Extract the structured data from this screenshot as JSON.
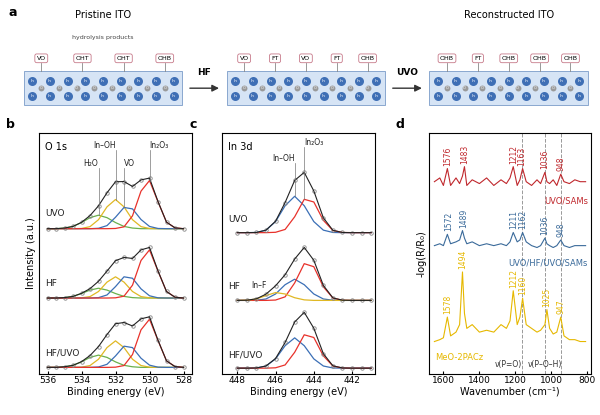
{
  "diagram": {
    "label": "a",
    "atoms": [
      "In",
      "O"
    ],
    "stages": [
      {
        "title": "Pristine ITO",
        "note": "hydrolysis products",
        "sites": [
          "VO",
          "OHT",
          "OHT",
          "OHB"
        ]
      },
      {
        "sites": [
          "VO",
          "FT",
          "VO",
          "FT",
          "OHB"
        ]
      },
      {
        "title": "Reconstructed ITO",
        "sites": [
          "OHB",
          "FT",
          "OHB",
          "OHB",
          "OHB"
        ]
      }
    ],
    "transitions": [
      "HF",
      "UVO"
    ]
  },
  "chart_data": [
    {
      "type": "line",
      "label": "b",
      "annotation": "O 1s",
      "xlabel": "Binding energy (eV)",
      "ylabel": "Intensity (a.u.)",
      "x": [
        536,
        535.5,
        535,
        534.5,
        534,
        533.5,
        533,
        532.5,
        532,
        531.5,
        531,
        530.5,
        530,
        529.5,
        529,
        528.5,
        528
      ],
      "xlim": [
        536.5,
        527.5
      ],
      "xticks": [
        536,
        534,
        532,
        530,
        528
      ],
      "ylim": [
        -0.3,
        11.5
      ],
      "yticks": [],
      "tick_labels": "x",
      "series": [
        {
          "name": "UVO",
          "color": "#222222",
          "marker": "o",
          "values": [
            6.8,
            6.8,
            6.83,
            6.91,
            7.11,
            7.44,
            7.92,
            8.56,
            9.1,
            9.11,
            8.87,
            9.19,
            9.28,
            8.13,
            7.12,
            6.84,
            6.8
          ],
          "components": [
            {
              "name": "H₂O",
              "color": "#6ab04c",
              "values": [
                6.8,
                6.8,
                6.83,
                6.91,
                7.1,
                7.34,
                7.46,
                7.34,
                7.1,
                6.91,
                6.83,
                6.8,
                6.8,
                6.8,
                6.8,
                6.8,
                6.8
              ]
            },
            {
              "name": "In–OH",
              "color": "#e0b824",
              "values": [
                6.8,
                6.8,
                6.8,
                6.8,
                6.81,
                6.9,
                7.24,
                7.87,
                8.23,
                7.87,
                7.24,
                6.9,
                6.81,
                6.8,
                6.8,
                6.8,
                6.8
              ]
            },
            {
              "name": "VO",
              "color": "#3b6fb6",
              "values": [
                6.8,
                6.8,
                6.8,
                6.8,
                6.8,
                6.8,
                6.82,
                6.95,
                7.36,
                7.84,
                7.77,
                7.25,
                6.91,
                6.81,
                6.8,
                6.8,
                6.8
              ]
            },
            {
              "name": "In₂O₃",
              "color": "#e8322b",
              "values": [
                6.8,
                6.8,
                6.8,
                6.8,
                6.8,
                6.8,
                6.8,
                6.8,
                6.81,
                6.89,
                7.43,
                8.64,
                9.16,
                8.12,
                7.12,
                6.84,
                6.8
              ]
            }
          ]
        },
        {
          "name": "HF",
          "color": "#222222",
          "marker": "o",
          "values": [
            3.4,
            3.4,
            3.42,
            3.48,
            3.63,
            3.86,
            4.22,
            4.72,
            5.23,
            5.39,
            5.34,
            5.76,
            5.88,
            4.73,
            3.72,
            3.44,
            3.4
          ],
          "components": [
            {
              "name": "H₂O",
              "color": "#6ab04c",
              "values": [
                3.4,
                3.4,
                3.42,
                3.48,
                3.62,
                3.79,
                3.88,
                3.79,
                3.62,
                3.48,
                3.42,
                3.4,
                3.4,
                3.4,
                3.4,
                3.4,
                3.4
              ]
            },
            {
              "name": "In–OH",
              "color": "#e0b824",
              "values": [
                3.4,
                3.4,
                3.4,
                3.4,
                3.41,
                3.47,
                3.72,
                4.18,
                4.44,
                4.18,
                3.72,
                3.47,
                3.41,
                3.4,
                3.4,
                3.4,
                3.4
              ]
            },
            {
              "name": "VO",
              "color": "#3b6fb6",
              "values": [
                3.4,
                3.4,
                3.4,
                3.4,
                3.4,
                3.4,
                3.42,
                3.55,
                3.96,
                4.44,
                4.37,
                3.85,
                3.51,
                3.41,
                3.4,
                3.4,
                3.4
              ]
            },
            {
              "name": "In₂O₃",
              "color": "#e8322b",
              "values": [
                3.4,
                3.4,
                3.4,
                3.4,
                3.4,
                3.4,
                3.4,
                3.4,
                3.41,
                3.49,
                4.03,
                5.24,
                5.76,
                4.72,
                3.72,
                3.44,
                3.4
              ]
            }
          ]
        },
        {
          "name": "HF/UVO",
          "color": "#222222",
          "marker": "o",
          "values": [
            0,
            0,
            0.03,
            0.1,
            0.28,
            0.58,
            1.02,
            1.61,
            2.14,
            2.2,
            2.03,
            2.38,
            2.48,
            1.33,
            0.32,
            0.04,
            0
          ],
          "components": [
            {
              "name": "H₂O",
              "color": "#6ab04c",
              "values": [
                0,
                0,
                0.03,
                0.1,
                0.27,
                0.49,
                0.6,
                0.49,
                0.27,
                0.1,
                0.03,
                0,
                0,
                0,
                0,
                0,
                0
              ]
            },
            {
              "name": "In–OH",
              "color": "#e0b824",
              "values": [
                0,
                0,
                0,
                0,
                0.01,
                0.09,
                0.4,
                0.97,
                1.3,
                0.97,
                0.4,
                0.09,
                0.01,
                0,
                0,
                0,
                0
              ]
            },
            {
              "name": "VO",
              "color": "#3b6fb6",
              "values": [
                0,
                0,
                0,
                0,
                0,
                0,
                0.02,
                0.15,
                0.56,
                1.04,
                0.97,
                0.45,
                0.11,
                0.01,
                0,
                0,
                0
              ]
            },
            {
              "name": "In₂O₃",
              "color": "#e8322b",
              "values": [
                0,
                0,
                0,
                0,
                0,
                0,
                0,
                0,
                0.01,
                0.09,
                0.63,
                1.84,
                2.36,
                1.32,
                0.32,
                0.04,
                0
              ]
            }
          ]
        }
      ]
    },
    {
      "type": "line",
      "label": "c",
      "annotation": "In 3d",
      "xlabel": "Binding energy (eV)",
      "x": [
        448,
        447.5,
        447,
        446.5,
        446,
        445.5,
        445,
        444.5,
        444,
        443.5,
        443,
        442.5,
        442,
        441.5,
        441
      ],
      "xlim": [
        448.8,
        440.8
      ],
      "xticks": [
        448,
        446,
        444,
        442
      ],
      "ylim": [
        -0.3,
        13.2
      ],
      "yticks": [],
      "tick_labels": "x",
      "series": [
        {
          "name": "UVO",
          "color": "#222222",
          "marker": "o",
          "values": [
            7.6,
            7.6,
            7.61,
            7.74,
            8.24,
            9.29,
            10.53,
            10.98,
            9.94,
            8.43,
            7.73,
            7.61,
            7.6,
            7.6,
            7.6
          ],
          "components": [
            {
              "name": "In–OH",
              "color": "#3b6fb6",
              "values": [
                7.6,
                7.6,
                7.61,
                7.74,
                8.22,
                9.11,
                9.64,
                9.11,
                8.22,
                7.74,
                7.61,
                7.6,
                7.6,
                7.6,
                7.6
              ]
            },
            {
              "name": "In₂O₃",
              "color": "#e8322b",
              "values": [
                7.6,
                7.6,
                7.6,
                7.6,
                7.62,
                7.78,
                8.49,
                9.47,
                9.32,
                8.29,
                7.72,
                7.61,
                7.6,
                7.6,
                7.6
              ]
            }
          ]
        },
        {
          "name": "HF",
          "color": "#222222",
          "marker": "o",
          "values": [
            3.8,
            3.81,
            3.89,
            4.15,
            4.62,
            5.24,
            6.12,
            6.77,
            6.05,
            4.64,
            3.94,
            3.81,
            3.8,
            3.8,
            3.8
          ],
          "components": [
            {
              "name": "In–OH",
              "color": "#3b6fb6",
              "values": [
                3.8,
                3.8,
                3.81,
                3.88,
                4.16,
                4.68,
                4.99,
                4.68,
                4.16,
                3.88,
                3.81,
                3.8,
                3.8,
                3.8,
                3.8
              ]
            },
            {
              "name": "In₂O₃",
              "color": "#e8322b",
              "values": [
                3.8,
                3.8,
                3.8,
                3.8,
                3.82,
                4.0,
                4.78,
                5.86,
                5.69,
                4.56,
                3.93,
                3.81,
                3.8,
                3.8,
                3.8
              ]
            },
            {
              "name": "In–F",
              "color": "#e0b824",
              "values": [
                3.8,
                3.81,
                3.88,
                4.07,
                4.24,
                4.16,
                3.95,
                3.83,
                3.8,
                3.8,
                3.8,
                3.8,
                3.8,
                3.8,
                3.8
              ]
            }
          ]
        },
        {
          "name": "HF/UVO",
          "color": "#222222",
          "marker": "o",
          "values": [
            0,
            0,
            0.01,
            0.12,
            0.54,
            1.44,
            2.59,
            3.13,
            2.24,
            0.81,
            0.13,
            0.01,
            0,
            0,
            0
          ],
          "components": [
            {
              "name": "In–OH",
              "color": "#3b6fb6",
              "values": [
                0,
                0,
                0.01,
                0.12,
                0.52,
                1.26,
                1.7,
                1.26,
                0.52,
                0.12,
                0.01,
                0,
                0,
                0,
                0
              ]
            },
            {
              "name": "In₂O₃",
              "color": "#e8322b",
              "values": [
                0,
                0,
                0,
                0,
                0.02,
                0.18,
                0.89,
                1.87,
                1.72,
                0.69,
                0.12,
                0.01,
                0,
                0,
                0
              ]
            }
          ]
        }
      ]
    },
    {
      "type": "line",
      "label": "d",
      "xlabel": "Wavenumber (cm⁻¹)",
      "ylabel": "-log(R/R₀)",
      "x": [
        1650,
        1620,
        1600,
        1578,
        1560,
        1530,
        1510,
        1494,
        1483,
        1470,
        1440,
        1400,
        1360,
        1320,
        1280,
        1250,
        1230,
        1212,
        1190,
        1175,
        1160,
        1140,
        1110,
        1080,
        1060,
        1036,
        1025,
        1010,
        990,
        970,
        948,
        930,
        900,
        870,
        840,
        810
      ],
      "xlim": [
        1680,
        780
      ],
      "xticks": [
        1600,
        1400,
        1200,
        1000,
        800
      ],
      "ylim": [
        -0.8,
        5.6
      ],
      "yticks": [],
      "tick_labels": "x",
      "vlines": [
        1162,
        1036,
        948
      ],
      "annotations": [
        "ν(P=O)",
        "ν(P–O–H)"
      ],
      "series": [
        {
          "name": "UVO/SAMs",
          "color": "#c0282d",
          "peak_labels": [
            1576,
            1483,
            1212,
            1163,
            1036,
            948
          ],
          "values": [
            4.3,
            4.4,
            4.2,
            4.65,
            4.2,
            4.4,
            4.25,
            4.45,
            4.7,
            4.2,
            4.35,
            4.25,
            4.4,
            4.2,
            4.35,
            4.25,
            4.4,
            4.7,
            4.2,
            4.35,
            4.65,
            4.3,
            4.2,
            4.35,
            4.25,
            4.55,
            4.3,
            4.25,
            4.35,
            4.2,
            4.5,
            4.3,
            4.25,
            4.35,
            4.3,
            4.3
          ]
        },
        {
          "name": "UVO/HF/UVO/SAMs",
          "color": "#3a6a9a",
          "peak_labels": [
            1572,
            1489,
            1211,
            1162,
            1036,
            948
          ],
          "values": [
            2.6,
            2.65,
            2.6,
            2.9,
            2.65,
            2.7,
            2.75,
            3.0,
            2.8,
            2.65,
            2.7,
            2.6,
            2.65,
            2.6,
            2.65,
            2.6,
            2.7,
            2.95,
            2.7,
            2.75,
            2.95,
            2.7,
            2.6,
            2.55,
            2.6,
            2.8,
            2.65,
            2.6,
            2.55,
            2.6,
            2.75,
            2.6,
            2.55,
            2.6,
            2.6,
            2.6
          ]
        },
        {
          "name": "MeO-2PACz",
          "color": "#e6b800",
          "peak_labels": [
            1578,
            1494,
            1212,
            1160,
            1025,
            947
          ],
          "values": [
            0.05,
            0.1,
            0.15,
            0.7,
            0.2,
            0.3,
            0.5,
            1.9,
            0.8,
            0.4,
            0.5,
            0.3,
            0.35,
            0.3,
            0.5,
            0.4,
            0.6,
            1.4,
            0.5,
            0.7,
            1.2,
            0.5,
            0.4,
            0.3,
            0.35,
            0.5,
            0.9,
            0.4,
            0.25,
            0.3,
            0.7,
            0.2,
            0.1,
            0.1,
            0.05,
            0.05
          ]
        }
      ]
    }
  ]
}
